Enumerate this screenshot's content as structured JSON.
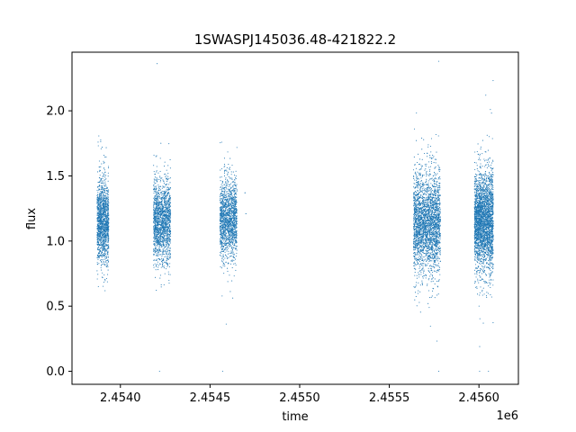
{
  "chart_data": {
    "type": "scatter",
    "title": "1SWASPJ145036.48-421822.2",
    "xlabel": "time",
    "ylabel": "flux",
    "x_offset_label": "1e6",
    "xlim": [
      2453730,
      2456220
    ],
    "ylim": [
      -0.1,
      2.45
    ],
    "x_ticks": [
      2454000,
      2454500,
      2455000,
      2455500,
      2456000
    ],
    "x_tick_labels": [
      "2.4540",
      "2.4545",
      "2.4550",
      "2.4555",
      "2.4560"
    ],
    "y_ticks": [
      0.0,
      0.5,
      1.0,
      1.5,
      2.0
    ],
    "y_tick_labels": [
      "0.0",
      "0.5",
      "1.0",
      "1.5",
      "2.0"
    ],
    "grid": false,
    "marker_color": "#1f77b4",
    "seasons": [
      {
        "x_range": [
          2453870,
          2453935
        ],
        "median_flux": 1.15,
        "spread": 0.16,
        "points": 1400
      },
      {
        "x_range": [
          2454185,
          2454280
        ],
        "median_flux": 1.15,
        "spread": 0.16,
        "points": 1600
      },
      {
        "x_range": [
          2454555,
          2454650
        ],
        "median_flux": 1.17,
        "spread": 0.15,
        "points": 1500
      },
      {
        "x_range": [
          2455635,
          2455785
        ],
        "median_flux": 1.15,
        "spread": 0.19,
        "points": 2600
      },
      {
        "x_range": [
          2455975,
          2456080
        ],
        "median_flux": 1.15,
        "spread": 0.19,
        "points": 2800
      }
    ],
    "stray_points": [
      {
        "x": 2454695,
        "y": 1.37
      },
      {
        "x": 2454700,
        "y": 1.21
      }
    ]
  }
}
